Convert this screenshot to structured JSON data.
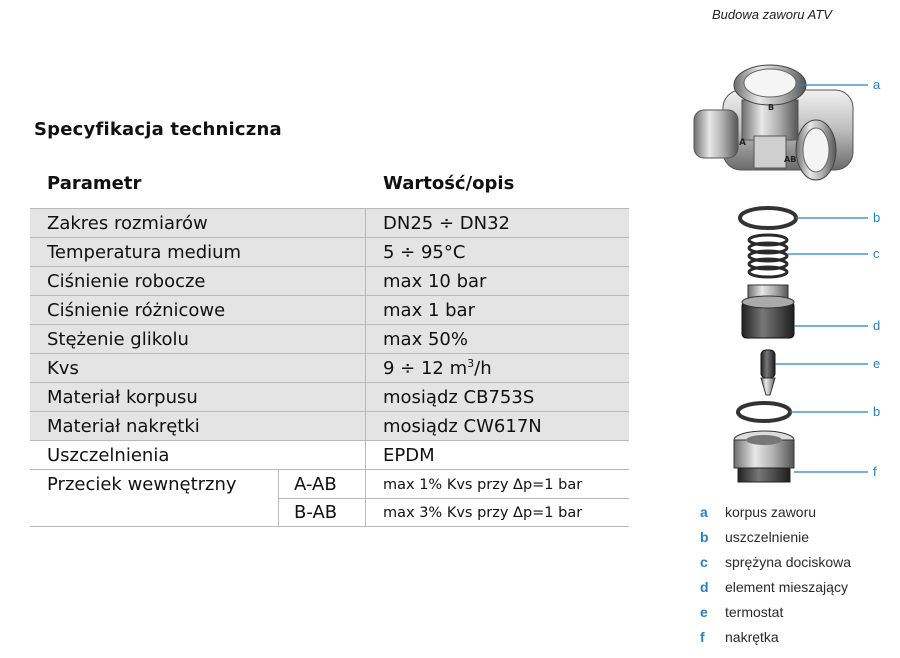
{
  "diagram_title": "Budowa zaworu ATV",
  "spec_title": "Specyfikacja techniczna",
  "table": {
    "header": {
      "param": "Parametr",
      "value": "Wartość/opis"
    },
    "rows": [
      {
        "param": "Zakres rozmiarów",
        "value": "DN25 ÷ DN32"
      },
      {
        "param": "Temperatura medium",
        "value": "5 ÷ 95°C"
      },
      {
        "param": "Ciśnienie robocze",
        "value": "max 10 bar"
      },
      {
        "param": "Ciśnienie różnicowe",
        "value": "max 1 bar"
      },
      {
        "param": "Stężenie glikolu",
        "value": "max 50%"
      },
      {
        "param": "Kvs",
        "value": "9 ÷ 12 m",
        "value_sup": "3",
        "value_suffix": "/h"
      },
      {
        "param": "Materiał korpusu",
        "value": "mosiądz  CB753S"
      },
      {
        "param": "Materiał nakrętki",
        "value": "mosiądz  CW617N"
      },
      {
        "param": "Uszczelnienia",
        "value": "EPDM"
      }
    ],
    "leak": {
      "param": "Przeciek wewnętrzny",
      "sub": [
        {
          "code": "A-AB",
          "value": "max 1% Kvs przy Δp=1 bar"
        },
        {
          "code": "B-AB",
          "value": "max 3% Kvs przy Δp=1 bar"
        }
      ]
    }
  },
  "diagram": {
    "port_labels": {
      "a": "A",
      "ab": "AB",
      "b": "B"
    },
    "callouts": [
      "a",
      "b",
      "c",
      "d",
      "e",
      "b",
      "f"
    ]
  },
  "legend": [
    {
      "key": "a",
      "text": "korpus zaworu"
    },
    {
      "key": "b",
      "text": "uszczelnienie"
    },
    {
      "key": "c",
      "text": "sprężyna dociskowa"
    },
    {
      "key": "d",
      "text": "element mieszający"
    },
    {
      "key": "e",
      "text": "termostat"
    },
    {
      "key": "f",
      "text": "nakrętka"
    }
  ],
  "colors": {
    "accent": "#2b7fc0",
    "row_shade": "#e4e4e4",
    "rule": "#b9b9b9"
  }
}
